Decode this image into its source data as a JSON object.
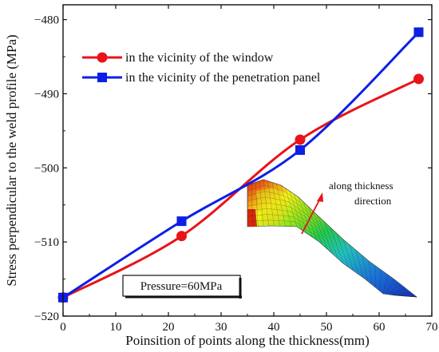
{
  "chart_data": {
    "type": "line",
    "xlabel": "Poinsition of points along the thickness(mm)",
    "ylabel": "Stress perpendicular to the weld profile (MPa)",
    "xlim": [
      0,
      70
    ],
    "ylim": [
      -520,
      -478
    ],
    "xticks": [
      0,
      10,
      20,
      30,
      40,
      50,
      60,
      70
    ],
    "yticks": [
      -520,
      -510,
      -500,
      -490,
      -480
    ],
    "legend_position": "top-left",
    "series": [
      {
        "name": "in the vicinity of the window",
        "color": "#e8141a",
        "marker": "circle",
        "x": [
          0,
          22.5,
          45,
          67.5
        ],
        "y": [
          -517.5,
          -509.2,
          -496.2,
          -488
        ]
      },
      {
        "name": "in the vicinity of the penetration panel",
        "color": "#0c1fe6",
        "marker": "square",
        "x": [
          0,
          22.5,
          45,
          67.5
        ],
        "y": [
          -517.5,
          -507.2,
          -497.6,
          -481.7
        ]
      }
    ],
    "annotations": {
      "inset_label": "along thickness\ndirection",
      "pressure_label": "Pressure=60MPa"
    }
  }
}
